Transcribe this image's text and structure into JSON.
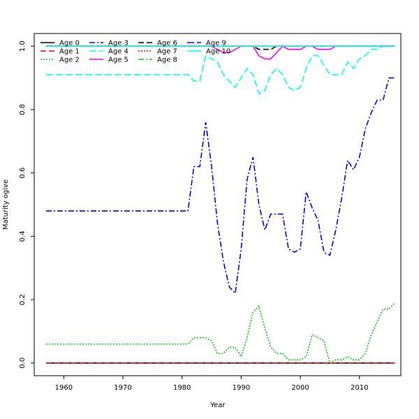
{
  "chart_data": {
    "type": "line",
    "title": "",
    "xlabel": "Year",
    "ylabel": "Maturity ogive",
    "xlim": [
      1955,
      2017
    ],
    "ylim": [
      -0.04,
      1.04
    ],
    "x_ticks": [
      1960,
      1970,
      1980,
      1990,
      2000,
      2010
    ],
    "y_ticks": [
      0.0,
      0.2,
      0.4,
      0.6,
      0.8,
      1.0
    ],
    "x_tick_labels": [
      "1960",
      "1970",
      "1980",
      "1990",
      "2000",
      "2010"
    ],
    "y_tick_labels": [
      "0.0",
      "0.2",
      "0.4",
      "0.6",
      "0.8",
      "1.0"
    ],
    "grid": false,
    "legend_position": "top-left",
    "x": [
      1957,
      1958,
      1959,
      1960,
      1961,
      1962,
      1963,
      1964,
      1965,
      1966,
      1967,
      1968,
      1969,
      1970,
      1971,
      1972,
      1973,
      1974,
      1975,
      1976,
      1977,
      1978,
      1979,
      1980,
      1981,
      1982,
      1983,
      1984,
      1985,
      1986,
      1987,
      1988,
      1989,
      1990,
      1991,
      1992,
      1993,
      1994,
      1995,
      1996,
      1997,
      1998,
      1999,
      2000,
      2001,
      2002,
      2003,
      2004,
      2005,
      2006,
      2007,
      2008,
      2009,
      2010,
      2011,
      2012,
      2013,
      2014,
      2015,
      2016
    ],
    "series": [
      {
        "name": "Age 0",
        "color": "#000000",
        "dash": "",
        "values": [
          0,
          0,
          0,
          0,
          0,
          0,
          0,
          0,
          0,
          0,
          0,
          0,
          0,
          0,
          0,
          0,
          0,
          0,
          0,
          0,
          0,
          0,
          0,
          0,
          0,
          0,
          0,
          0,
          0,
          0,
          0,
          0,
          0,
          0,
          0,
          0,
          0,
          0,
          0,
          0,
          0,
          0,
          0,
          0,
          0,
          0,
          0,
          0,
          0,
          0,
          0,
          0,
          0,
          0,
          0,
          0,
          0,
          0,
          0,
          0
        ]
      },
      {
        "name": "Age 1",
        "color": "#ff0000",
        "dash": "8,4",
        "values": [
          0,
          0,
          0,
          0,
          0,
          0,
          0,
          0,
          0,
          0,
          0,
          0,
          0,
          0,
          0,
          0,
          0,
          0,
          0,
          0,
          0,
          0,
          0,
          0,
          0,
          0,
          0,
          0,
          0,
          0,
          0,
          0,
          0,
          0,
          0,
          0,
          0,
          0,
          0,
          0,
          0,
          0,
          0,
          0,
          0,
          0,
          0,
          0,
          0,
          0,
          0,
          0,
          0,
          0,
          0,
          0,
          0,
          0,
          0,
          0
        ]
      },
      {
        "name": "Age 2",
        "color": "#00cd00",
        "dash": "2,2",
        "values": [
          0.06,
          0.06,
          0.06,
          0.06,
          0.06,
          0.06,
          0.06,
          0.06,
          0.06,
          0.06,
          0.06,
          0.06,
          0.06,
          0.06,
          0.06,
          0.06,
          0.06,
          0.06,
          0.06,
          0.06,
          0.06,
          0.06,
          0.06,
          0.06,
          0.06,
          0.08,
          0.08,
          0.08,
          0.07,
          0.03,
          0.03,
          0.05,
          0.05,
          0.02,
          0.08,
          0.16,
          0.18,
          0.11,
          0.05,
          0.03,
          0.03,
          0.01,
          0.01,
          0.01,
          0.02,
          0.09,
          0.08,
          0.07,
          0.0,
          0.01,
          0.01,
          0.02,
          0.01,
          0.01,
          0.03,
          0.09,
          0.13,
          0.17,
          0.17,
          0.19
        ]
      },
      {
        "name": "Age 3",
        "color": "#0000ff",
        "dash": "8,3,2,3",
        "values": [
          0.48,
          0.48,
          0.48,
          0.48,
          0.48,
          0.48,
          0.48,
          0.48,
          0.48,
          0.48,
          0.48,
          0.48,
          0.48,
          0.48,
          0.48,
          0.48,
          0.48,
          0.48,
          0.48,
          0.48,
          0.48,
          0.48,
          0.48,
          0.48,
          0.48,
          0.62,
          0.62,
          0.76,
          0.62,
          0.44,
          0.32,
          0.24,
          0.22,
          0.36,
          0.58,
          0.65,
          0.5,
          0.42,
          0.47,
          0.47,
          0.47,
          0.36,
          0.35,
          0.36,
          0.54,
          0.49,
          0.45,
          0.35,
          0.34,
          0.42,
          0.52,
          0.64,
          0.61,
          0.65,
          0.74,
          0.79,
          0.83,
          0.83,
          0.9,
          0.9
        ]
      },
      {
        "name": "Age 4",
        "color": "#00ffff",
        "dash": "10,4",
        "values": [
          0.91,
          0.91,
          0.91,
          0.91,
          0.91,
          0.91,
          0.91,
          0.91,
          0.91,
          0.91,
          0.91,
          0.91,
          0.91,
          0.91,
          0.91,
          0.91,
          0.91,
          0.91,
          0.91,
          0.91,
          0.91,
          0.91,
          0.91,
          0.91,
          0.91,
          0.89,
          0.89,
          0.97,
          0.96,
          0.95,
          0.91,
          0.89,
          0.87,
          0.9,
          0.93,
          0.91,
          0.85,
          0.86,
          0.91,
          0.93,
          0.91,
          0.87,
          0.86,
          0.87,
          0.93,
          0.97,
          0.97,
          0.94,
          0.91,
          0.91,
          0.91,
          0.95,
          0.93,
          0.96,
          0.97,
          0.99,
          0.99,
          1.0,
          1.0,
          1.0
        ]
      },
      {
        "name": "Age 5",
        "color": "#ff00ff",
        "dash": "",
        "values": [
          1,
          1,
          1,
          1,
          1,
          1,
          1,
          1,
          1,
          1,
          1,
          1,
          1,
          1,
          1,
          1,
          1,
          1,
          1,
          1,
          1,
          1,
          1,
          1,
          1,
          1,
          1,
          1,
          1,
          0.99,
          0.98,
          0.98,
          0.99,
          1.0,
          1.0,
          1.0,
          0.97,
          0.96,
          0.96,
          0.98,
          1.0,
          0.99,
          0.99,
          0.99,
          1.0,
          1.0,
          0.99,
          0.99,
          0.99,
          1.0,
          1.0,
          1.0,
          1.0,
          1.0,
          1.0,
          1.0,
          1.0,
          1.0,
          1.0,
          1.0
        ]
      },
      {
        "name": "Age 6",
        "color": "#000000",
        "dash": "8,4",
        "values": [
          1,
          1,
          1,
          1,
          1,
          1,
          1,
          1,
          1,
          1,
          1,
          1,
          1,
          1,
          1,
          1,
          1,
          1,
          1,
          1,
          1,
          1,
          1,
          1,
          1,
          1,
          1,
          1,
          1,
          1,
          1,
          1,
          1,
          1,
          1,
          1,
          0.99,
          0.99,
          0.99,
          1,
          1,
          1,
          1,
          1,
          1,
          1,
          1,
          1,
          1,
          1,
          1,
          1,
          1,
          1,
          1,
          1,
          1,
          1,
          1,
          1
        ]
      },
      {
        "name": "Age 7",
        "color": "#ff0000",
        "dash": "2,2",
        "values": [
          1,
          1,
          1,
          1,
          1,
          1,
          1,
          1,
          1,
          1,
          1,
          1,
          1,
          1,
          1,
          1,
          1,
          1,
          1,
          1,
          1,
          1,
          1,
          1,
          1,
          1,
          1,
          1,
          1,
          1,
          1,
          1,
          1,
          1,
          1,
          1,
          1,
          1,
          1,
          1,
          1,
          1,
          1,
          1,
          1,
          1,
          1,
          1,
          1,
          1,
          1,
          1,
          1,
          1,
          1,
          1,
          1,
          1,
          1,
          1
        ]
      },
      {
        "name": "Age 8",
        "color": "#00cd00",
        "dash": "8,3,2,3",
        "values": [
          1,
          1,
          1,
          1,
          1,
          1,
          1,
          1,
          1,
          1,
          1,
          1,
          1,
          1,
          1,
          1,
          1,
          1,
          1,
          1,
          1,
          1,
          1,
          1,
          1,
          1,
          1,
          1,
          1,
          1,
          1,
          1,
          1,
          1,
          1,
          1,
          1,
          1,
          1,
          1,
          1,
          1,
          1,
          1,
          1,
          1,
          1,
          1,
          1,
          1,
          1,
          1,
          1,
          1,
          1,
          1,
          1,
          1,
          1,
          1
        ]
      },
      {
        "name": "Age 9",
        "color": "#0000ff",
        "dash": "10,4",
        "values": [
          1,
          1,
          1,
          1,
          1,
          1,
          1,
          1,
          1,
          1,
          1,
          1,
          1,
          1,
          1,
          1,
          1,
          1,
          1,
          1,
          1,
          1,
          1,
          1,
          1,
          1,
          1,
          1,
          1,
          1,
          1,
          1,
          1,
          1,
          1,
          1,
          1,
          1,
          1,
          1,
          1,
          1,
          1,
          1,
          1,
          1,
          1,
          1,
          1,
          1,
          1,
          1,
          1,
          1,
          1,
          1,
          1,
          1,
          1,
          1
        ]
      },
      {
        "name": "Age 10",
        "color": "#00ffff",
        "dash": "",
        "values": [
          1,
          1,
          1,
          1,
          1,
          1,
          1,
          1,
          1,
          1,
          1,
          1,
          1,
          1,
          1,
          1,
          1,
          1,
          1,
          1,
          1,
          1,
          1,
          1,
          1,
          1,
          1,
          1,
          1,
          1,
          1,
          1,
          1,
          1,
          1,
          1,
          1,
          1,
          1,
          1,
          1,
          1,
          1,
          1,
          1,
          1,
          1,
          1,
          1,
          1,
          1,
          1,
          1,
          1,
          1,
          1,
          1,
          1,
          1,
          1
        ]
      }
    ],
    "legend_columns": [
      [
        "Age 0",
        "Age 1",
        "Age 2"
      ],
      [
        "Age 3",
        "Age 4",
        "Age 5"
      ],
      [
        "Age 6",
        "Age 7",
        "Age 8"
      ],
      [
        "Age 9",
        "Age 10"
      ]
    ]
  }
}
